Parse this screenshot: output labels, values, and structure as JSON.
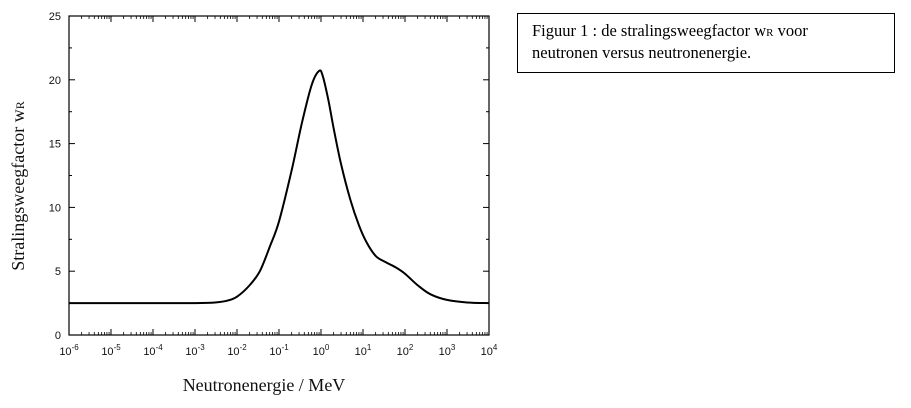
{
  "chart_data": {
    "type": "line",
    "xscale": "log",
    "xlim": [
      1e-06,
      10000.0
    ],
    "ylim": [
      0,
      25
    ],
    "yticks": [
      0,
      5,
      10,
      15,
      20,
      25
    ],
    "xticks": [
      {
        "value": 1e-06,
        "mantissa": "10",
        "exp": "-6"
      },
      {
        "value": 1e-05,
        "mantissa": "10",
        "exp": "-5"
      },
      {
        "value": 0.0001,
        "mantissa": "10",
        "exp": "-4"
      },
      {
        "value": 0.001,
        "mantissa": "10",
        "exp": "-3"
      },
      {
        "value": 0.01,
        "mantissa": "10",
        "exp": "-2"
      },
      {
        "value": 0.1,
        "mantissa": "10",
        "exp": "-1"
      },
      {
        "value": 1.0,
        "mantissa": "10",
        "exp": "0"
      },
      {
        "value": 10.0,
        "mantissa": "10",
        "exp": "1"
      },
      {
        "value": 100.0,
        "mantissa": "10",
        "exp": "2"
      },
      {
        "value": 1000.0,
        "mantissa": "10",
        "exp": "3"
      },
      {
        "value": 10000.0,
        "mantissa": "10",
        "exp": "4"
      }
    ],
    "xlabel": "Neutronenergie / MeV",
    "ylabel_main": "Stralingsweegfactor w",
    "ylabel_sub": "R",
    "grid": false,
    "series": [
      {
        "x": [
          1e-06,
          1e-05,
          0.0001,
          0.001,
          0.003,
          0.006,
          0.01,
          0.02,
          0.035,
          0.06,
          0.1,
          0.2,
          0.35,
          0.6,
          0.9,
          1.1,
          1.5,
          2,
          3,
          5,
          8,
          12,
          20,
          35,
          60,
          100,
          200,
          400,
          1000,
          3000,
          10000
        ],
        "y": [
          2.5,
          2.5,
          2.5,
          2.5,
          2.55,
          2.7,
          3.0,
          3.9,
          5.0,
          6.9,
          8.9,
          12.9,
          16.6,
          19.6,
          20.7,
          20.3,
          18.4,
          16.2,
          13.4,
          10.6,
          8.6,
          7.3,
          6.2,
          5.7,
          5.3,
          4.8,
          3.9,
          3.2,
          2.75,
          2.55,
          2.5
        ]
      }
    ]
  },
  "caption": {
    "line1_prefix": "Figuur 1 : de stralingsweegfactor w",
    "line1_sub": "R",
    "line1_suffix": " voor",
    "line2": "neutronen versus neutronenergie."
  }
}
